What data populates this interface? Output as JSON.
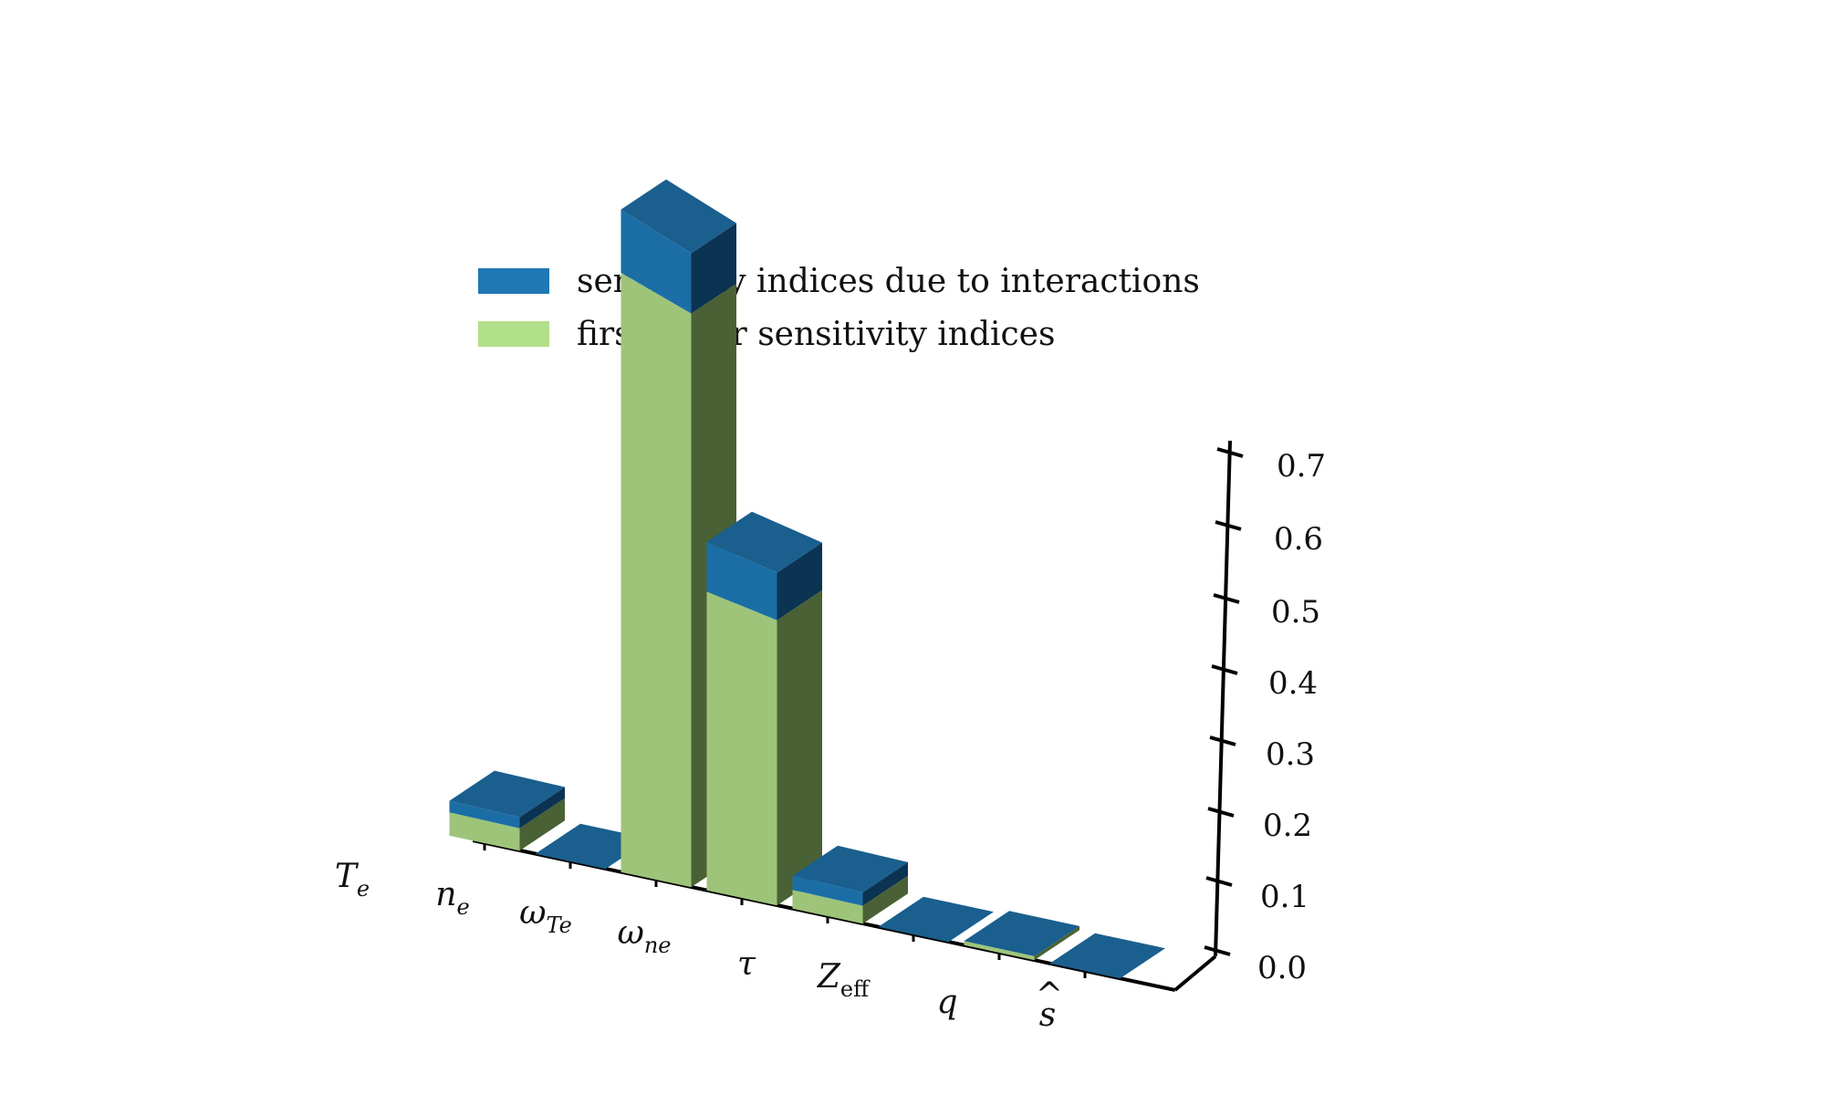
{
  "chart_data": {
    "type": "bar",
    "title": "",
    "xlabel": "",
    "ylabel": "",
    "categories": [
      {
        "base": "T",
        "sub": "e",
        "hat": false
      },
      {
        "base": "n",
        "sub": "e",
        "hat": false
      },
      {
        "base": "ω",
        "sub": "Te",
        "hat": false
      },
      {
        "base": "ω",
        "sub": "ne",
        "hat": false
      },
      {
        "base": "τ",
        "sub": "",
        "hat": false
      },
      {
        "base": "Z",
        "sub": "eff",
        "hat": false
      },
      {
        "base": "q",
        "sub": "",
        "hat": false
      },
      {
        "base": "s",
        "sub": "",
        "hat": true
      }
    ],
    "series": [
      {
        "name": "first-order sensitivity indices",
        "color": "#a6d96a",
        "values": [
          0.02,
          0.0,
          0.57,
          0.3,
          0.02,
          0.0,
          0.005,
          0.0
        ]
      },
      {
        "name": "sensitivity indices due to interactions",
        "color": "#1f78b4",
        "values": [
          0.01,
          0.0,
          0.06,
          0.05,
          0.015,
          0.0,
          0.0,
          0.0
        ]
      }
    ],
    "ylim": [
      0,
      0.72
    ],
    "yticks": [
      "0.0",
      "0.1",
      "0.2",
      "0.3",
      "0.4",
      "0.5",
      "0.6",
      "0.7"
    ],
    "legend": {
      "position": "top-left",
      "items": [
        {
          "label": "sensitivity indices due to interactions",
          "color": "#1f78b4"
        },
        {
          "label": "first-order sensitivity indices",
          "color": "#b2df8a"
        }
      ]
    },
    "grid": false,
    "projection": "3d"
  }
}
